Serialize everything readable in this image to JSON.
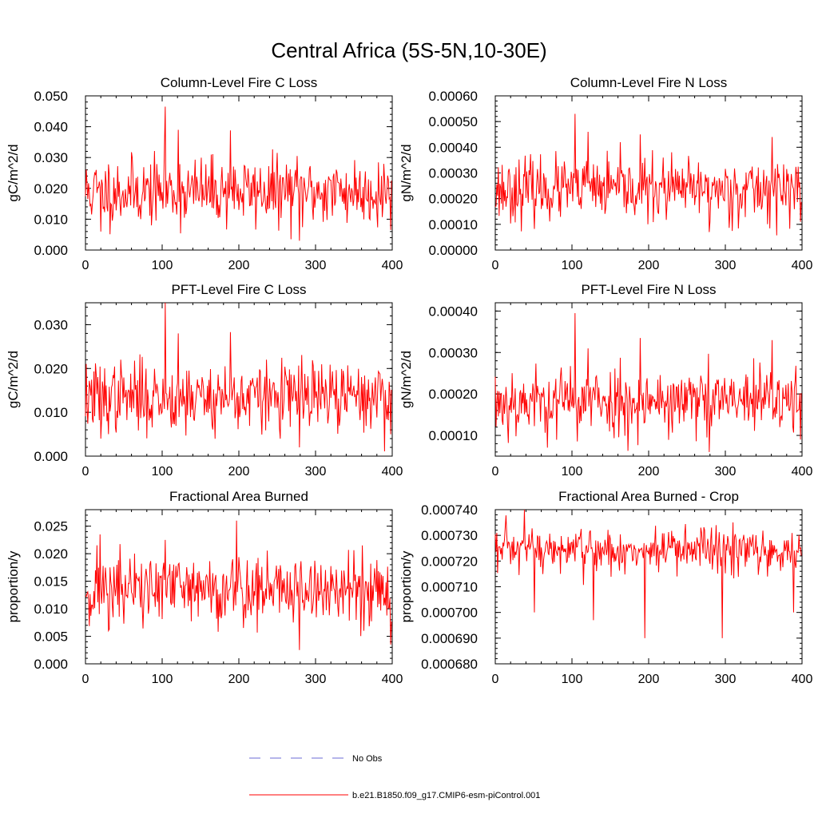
{
  "figure_title": "Central Africa (5S-5N,10-30E)",
  "colors": {
    "model_line": "#ff0000",
    "obs_line": "#6b6bd6",
    "axis": "#000000"
  },
  "legend": {
    "entries": [
      {
        "label": "No Obs",
        "style": "dashed",
        "color": "#6b6bd6"
      },
      {
        "label": "b.e21.B1850.f09_g17.CMIP6-esm-piControl.001",
        "style": "solid",
        "color": "#ff0000"
      }
    ]
  },
  "chart_data": [
    {
      "type": "line",
      "title": "Column-Level Fire C Loss",
      "ylabel": "gC/m^2/d",
      "xlim": [
        0,
        400
      ],
      "ylim": [
        0,
        0.05
      ],
      "xticks": [
        0,
        100,
        200,
        300,
        400
      ],
      "xtick_labels": [
        "0",
        "100",
        "200",
        "300",
        "400"
      ],
      "yticks": [
        0,
        0.01,
        0.02,
        0.03,
        0.04,
        0.05
      ],
      "ytick_labels": [
        "0.000",
        "0.010",
        "0.020",
        "0.030",
        "0.040",
        "0.050"
      ],
      "series": [
        {
          "name": "b.e21.B1850.f09_g17.CMIP6-esm-piControl.001",
          "n": 400,
          "mean": 0.019,
          "std": 0.0055,
          "seed": 11,
          "anchors": [
            [
              104,
              0.0465
            ],
            [
              121,
              0.039
            ],
            [
              189,
              0.0388
            ],
            [
              279,
              0.003
            ],
            [
              20,
              0.006
            ],
            [
              398,
              0.0065
            ]
          ]
        }
      ]
    },
    {
      "type": "line",
      "title": "Column-Level Fire N Loss",
      "ylabel": "gN/m^2/d",
      "xlim": [
        0,
        400
      ],
      "ylim": [
        0,
        0.0006
      ],
      "xticks": [
        0,
        100,
        200,
        300,
        400
      ],
      "xtick_labels": [
        "0",
        "100",
        "200",
        "300",
        "400"
      ],
      "yticks": [
        0,
        0.0001,
        0.0002,
        0.0003,
        0.0004,
        0.0005,
        0.0006
      ],
      "ytick_labels": [
        "0.00000",
        "0.00010",
        "0.00020",
        "0.00030",
        "0.00040",
        "0.00050",
        "0.00060"
      ],
      "series": [
        {
          "name": "b.e21.B1850.f09_g17.CMIP6-esm-piControl.001",
          "n": 400,
          "mean": 0.000235,
          "std": 6e-05,
          "seed": 23,
          "anchors": [
            [
              104,
              0.00053
            ],
            [
              121,
              0.00046
            ],
            [
              189,
              0.00045
            ],
            [
              279,
              7e-05
            ],
            [
              361,
              0.00044
            ],
            [
              398,
              0.00011
            ]
          ]
        }
      ]
    },
    {
      "type": "line",
      "title": "PFT-Level Fire C Loss",
      "ylabel": "gC/m^2/d",
      "xlim": [
        0,
        400
      ],
      "ylim": [
        0,
        0.035
      ],
      "xticks": [
        0,
        100,
        200,
        300,
        400
      ],
      "xtick_labels": [
        "0",
        "100",
        "200",
        "300",
        "400"
      ],
      "yticks": [
        0,
        0.01,
        0.02,
        0.03
      ],
      "ytick_labels": [
        "0.000",
        "0.010",
        "0.020",
        "0.030"
      ],
      "series": [
        {
          "name": "b.e21.B1850.f09_g17.CMIP6-esm-piControl.001",
          "n": 400,
          "mean": 0.0135,
          "std": 0.004,
          "seed": 37,
          "anchors": [
            [
              104,
              0.035
            ],
            [
              121,
              0.028
            ],
            [
              189,
              0.0283
            ],
            [
              279,
              0.002
            ],
            [
              20,
              0.004
            ],
            [
              398,
              0.005
            ]
          ]
        }
      ]
    },
    {
      "type": "line",
      "title": "PFT-Level Fire N Loss",
      "ylabel": "gN/m^2/d",
      "xlim": [
        0,
        400
      ],
      "ylim": [
        5e-05,
        0.00042
      ],
      "xticks": [
        0,
        100,
        200,
        300,
        400
      ],
      "xtick_labels": [
        "0",
        "100",
        "200",
        "300",
        "400"
      ],
      "yticks": [
        0.0001,
        0.0002,
        0.0003,
        0.0004
      ],
      "ytick_labels": [
        "0.00010",
        "0.00020",
        "0.00030",
        "0.00040"
      ],
      "series": [
        {
          "name": "b.e21.B1850.f09_g17.CMIP6-esm-piControl.001",
          "n": 400,
          "mean": 0.000182,
          "std": 4.2e-05,
          "seed": 53,
          "anchors": [
            [
              104,
              0.000395
            ],
            [
              121,
              0.00031
            ],
            [
              189,
              0.000335
            ],
            [
              279,
              6e-05
            ],
            [
              361,
              0.00033
            ],
            [
              398,
              9e-05
            ]
          ]
        }
      ]
    },
    {
      "type": "line",
      "title": "Fractional Area Burned",
      "ylabel": "proportion/y",
      "xlim": [
        0,
        400
      ],
      "ylim": [
        0,
        0.028
      ],
      "xticks": [
        0,
        100,
        200,
        300,
        400
      ],
      "xtick_labels": [
        "0",
        "100",
        "200",
        "300",
        "400"
      ],
      "yticks": [
        0,
        0.005,
        0.01,
        0.015,
        0.02,
        0.025
      ],
      "ytick_labels": [
        "0.000",
        "0.005",
        "0.010",
        "0.015",
        "0.020",
        "0.025"
      ],
      "series": [
        {
          "name": "b.e21.B1850.f09_g17.CMIP6-esm-piControl.001",
          "n": 400,
          "mean": 0.0135,
          "std": 0.0035,
          "seed": 71,
          "anchors": [
            [
              19,
              0.0235
            ],
            [
              197,
              0.026
            ],
            [
              279,
              0.0025
            ],
            [
              361,
              0.0215
            ],
            [
              398,
              0.0035
            ],
            [
              104,
              0.0225
            ]
          ]
        }
      ]
    },
    {
      "type": "line",
      "title": "Fractional Area Burned - Crop",
      "ylabel": "proportion/y",
      "xlim": [
        0,
        400
      ],
      "ylim": [
        0.00068,
        0.00074
      ],
      "xticks": [
        0,
        100,
        200,
        300,
        400
      ],
      "xtick_labels": [
        "0",
        "100",
        "200",
        "300",
        "400"
      ],
      "yticks": [
        0.00068,
        0.00069,
        0.0007,
        0.00071,
        0.00072,
        0.00073,
        0.00074
      ],
      "ytick_labels": [
        "0.000680",
        "0.000690",
        "0.000700",
        "0.000710",
        "0.000720",
        "0.000730",
        "0.000740"
      ],
      "series": [
        {
          "name": "b.e21.B1850.f09_g17.CMIP6-esm-piControl.001",
          "n": 400,
          "mean": 0.000724,
          "std": 4.5e-06,
          "seed": 97,
          "anchors": [
            [
              38,
              0.00074
            ],
            [
              195,
              0.00069
            ],
            [
              296,
              0.00069
            ],
            [
              128,
              0.000697
            ],
            [
              51,
              0.0007
            ],
            [
              389,
              0.0007
            ]
          ]
        }
      ]
    }
  ]
}
